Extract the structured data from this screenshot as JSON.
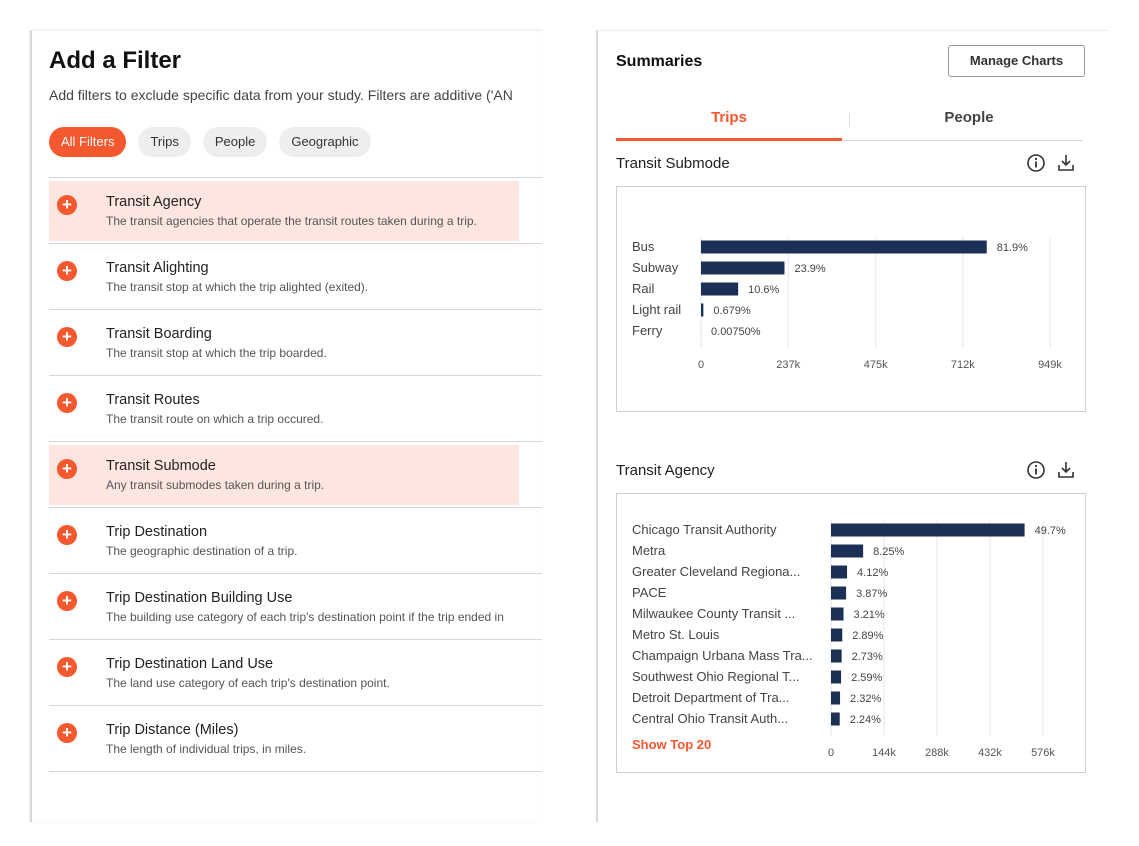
{
  "filter_panel": {
    "title": "Add a Filter",
    "description": "Add filters to exclude specific data from your study. Filters are additive ('AN",
    "chips": [
      "All Filters",
      "Trips",
      "People",
      "Geographic"
    ],
    "items": [
      {
        "name": "Transit Agency",
        "desc": "The transit agencies that operate the transit routes taken during a trip.",
        "highlight": true
      },
      {
        "name": "Transit Alighting",
        "desc": "The transit stop at which the trip alighted (exited).",
        "highlight": false
      },
      {
        "name": "Transit Boarding",
        "desc": "The transit stop at which the trip boarded.",
        "highlight": false
      },
      {
        "name": "Transit Routes",
        "desc": "The transit route on which a trip occured.",
        "highlight": false
      },
      {
        "name": "Transit Submode",
        "desc": "Any transit submodes taken during a trip.",
        "highlight": true
      },
      {
        "name": "Trip Destination",
        "desc": "The geographic destination of a trip.",
        "highlight": false
      },
      {
        "name": "Trip Destination Building Use",
        "desc": "The building use category of each trip's destination point if the trip ended in",
        "highlight": false
      },
      {
        "name": "Trip Destination Land Use",
        "desc": "The land use category of each trip's destination point.",
        "highlight": false
      },
      {
        "name": "Trip Distance (Miles)",
        "desc": "The length of individual trips, in miles.",
        "highlight": false
      }
    ]
  },
  "summary_panel": {
    "title": "Summaries",
    "manage_button": "Manage Charts",
    "tabs": [
      "Trips",
      "People"
    ],
    "active_tab": "Trips",
    "show_top_label": "Show Top 20",
    "icons": [
      "info-icon",
      "download-icon"
    ]
  },
  "colors": {
    "accent": "#f4582e",
    "bar": "#1c2f55",
    "highlight": "#fde6e0"
  },
  "chart_data": [
    {
      "type": "bar",
      "orientation": "horizontal",
      "title": "Transit Submode",
      "categories": [
        "Bus",
        "Subway",
        "Rail",
        "Light rail",
        "Ferry"
      ],
      "values": [
        777000,
        227000,
        101000,
        6450,
        71
      ],
      "labels": [
        "81.9%",
        "23.9%",
        "10.6%",
        "0.679%",
        "0.00750%"
      ],
      "xlim": [
        0,
        949000
      ],
      "ticks": [
        0,
        237000,
        475000,
        712000,
        949000
      ],
      "tick_labels": [
        "0",
        "237k",
        "475k",
        "712k",
        "949k"
      ],
      "grid": true
    },
    {
      "type": "bar",
      "orientation": "horizontal",
      "title": "Transit Agency",
      "categories": [
        "Chicago Transit Authority",
        "Metra",
        "Greater Cleveland Regiona...",
        "PACE",
        "Milwaukee County Transit ...",
        "Metro St. Louis",
        "Champaign Urbana Mass Tra...",
        "Southwest Ohio Regional T...",
        "Detroit Department of Tra...",
        "Central Ohio Transit Auth..."
      ],
      "values": [
        526000,
        87300,
        43600,
        41000,
        34000,
        30600,
        28900,
        27400,
        24600,
        23700
      ],
      "labels": [
        "49.7%",
        "8.25%",
        "4.12%",
        "3.87%",
        "3.21%",
        "2.89%",
        "2.73%",
        "2.59%",
        "2.32%",
        "2.24%"
      ],
      "xlim": [
        0,
        576000
      ],
      "ticks": [
        0,
        144000,
        288000,
        432000,
        576000
      ],
      "tick_labels": [
        "0",
        "144k",
        "288k",
        "432k",
        "576k"
      ],
      "grid": true
    }
  ]
}
